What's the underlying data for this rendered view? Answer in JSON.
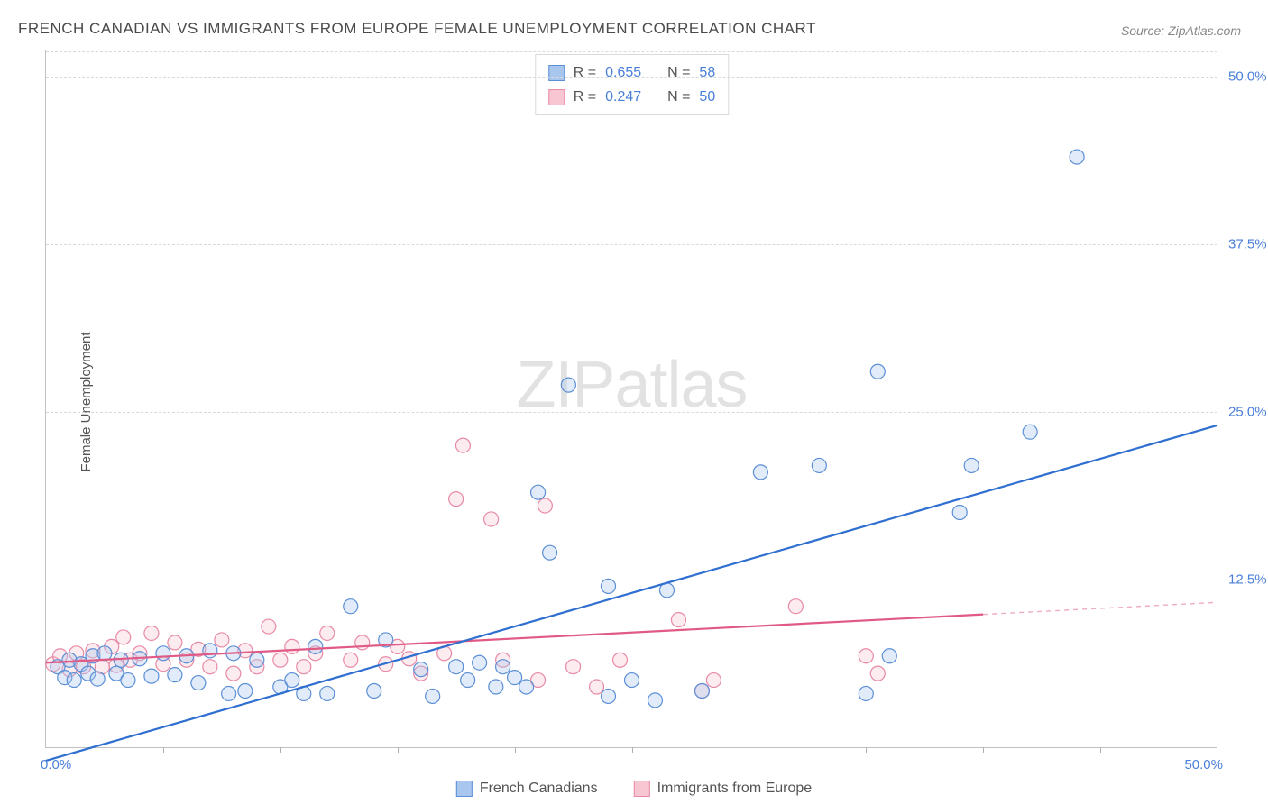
{
  "title": "FRENCH CANADIAN VS IMMIGRANTS FROM EUROPE FEMALE UNEMPLOYMENT CORRELATION CHART",
  "source": "Source: ZipAtlas.com",
  "ylabel": "Female Unemployment",
  "watermark_a": "ZIP",
  "watermark_b": "atlas",
  "chart": {
    "type": "scatter",
    "xlim": [
      0,
      50
    ],
    "ylim": [
      0,
      52
    ],
    "xlabel_min": "0.0%",
    "xlabel_max": "50.0%",
    "gridlines_y": [
      12.5,
      25.0,
      37.5,
      50.0
    ],
    "grid_dashed": true,
    "grid_color": "#d8d8d8",
    "ytick_labels": [
      "12.5%",
      "25.0%",
      "37.5%",
      "50.0%"
    ],
    "xtick_positions": [
      5,
      10,
      15,
      20,
      25,
      30,
      35,
      40,
      45
    ],
    "background_color": "#ffffff",
    "axis_color": "#c0c0c0",
    "label_color": "#4a7fd8",
    "text_color": "#555555",
    "title_fontsize": 17,
    "label_fontsize": 15,
    "marker_radius": 8,
    "marker_stroke_width": 1.2,
    "marker_fill_opacity": 0.35,
    "trend_line_width": 2.2
  },
  "series": {
    "blue": {
      "label": "French Canadians",
      "fill": "#a9c6ef",
      "stroke": "#5b8fd6",
      "trend_color": "#2f6fd0",
      "R": "0.655",
      "N": "58",
      "trend": {
        "x1": 0,
        "y1": -1.0,
        "x2": 50,
        "y2": 24.0,
        "solid_until_x": 50
      },
      "points": [
        [
          0.5,
          6.0
        ],
        [
          0.8,
          5.2
        ],
        [
          1.0,
          6.5
        ],
        [
          1.2,
          5.0
        ],
        [
          1.5,
          6.2
        ],
        [
          1.8,
          5.5
        ],
        [
          2.0,
          6.8
        ],
        [
          2.2,
          5.1
        ],
        [
          2.5,
          7.0
        ],
        [
          3.0,
          5.5
        ],
        [
          3.2,
          6.5
        ],
        [
          3.5,
          5.0
        ],
        [
          4.0,
          6.6
        ],
        [
          4.5,
          5.3
        ],
        [
          5.0,
          7.0
        ],
        [
          5.5,
          5.4
        ],
        [
          6.0,
          6.8
        ],
        [
          6.5,
          4.8
        ],
        [
          7.0,
          7.2
        ],
        [
          7.8,
          4.0
        ],
        [
          8.0,
          7.0
        ],
        [
          8.5,
          4.2
        ],
        [
          9.0,
          6.5
        ],
        [
          10.0,
          4.5
        ],
        [
          10.5,
          5.0
        ],
        [
          11.0,
          4.0
        ],
        [
          11.5,
          7.5
        ],
        [
          12.0,
          4.0
        ],
        [
          13.0,
          10.5
        ],
        [
          14.0,
          4.2
        ],
        [
          14.5,
          8.0
        ],
        [
          16.0,
          5.8
        ],
        [
          16.5,
          3.8
        ],
        [
          17.5,
          6.0
        ],
        [
          18.0,
          5.0
        ],
        [
          18.5,
          6.3
        ],
        [
          19.2,
          4.5
        ],
        [
          19.5,
          6.0
        ],
        [
          20.0,
          5.2
        ],
        [
          20.5,
          4.5
        ],
        [
          21.0,
          19.0
        ],
        [
          21.5,
          14.5
        ],
        [
          22.3,
          27.0
        ],
        [
          24.0,
          12.0
        ],
        [
          24.0,
          3.8
        ],
        [
          25.0,
          5.0
        ],
        [
          26.0,
          3.5
        ],
        [
          26.5,
          11.7
        ],
        [
          28.0,
          4.2
        ],
        [
          30.5,
          20.5
        ],
        [
          33.0,
          21.0
        ],
        [
          35.0,
          4.0
        ],
        [
          35.5,
          28.0
        ],
        [
          36.0,
          6.8
        ],
        [
          39.0,
          17.5
        ],
        [
          39.5,
          21.0
        ],
        [
          42.0,
          23.5
        ],
        [
          44.0,
          44.0
        ]
      ]
    },
    "pink": {
      "label": "Immigrants from Europe",
      "fill": "#f7c6d2",
      "stroke": "#e88aa5",
      "trend_color": "#e05a85",
      "R": "0.247",
      "N": "50",
      "trend": {
        "x1": 0,
        "y1": 6.3,
        "x2": 50,
        "y2": 10.8,
        "solid_until_x": 40
      },
      "points": [
        [
          0.3,
          6.2
        ],
        [
          0.6,
          6.8
        ],
        [
          1.0,
          5.8
        ],
        [
          1.3,
          7.0
        ],
        [
          1.6,
          6.0
        ],
        [
          2.0,
          7.2
        ],
        [
          2.4,
          6.0
        ],
        [
          2.8,
          7.5
        ],
        [
          3.0,
          6.1
        ],
        [
          3.3,
          8.2
        ],
        [
          3.6,
          6.5
        ],
        [
          4.0,
          7.0
        ],
        [
          4.5,
          8.5
        ],
        [
          5.0,
          6.2
        ],
        [
          5.5,
          7.8
        ],
        [
          6.0,
          6.5
        ],
        [
          6.5,
          7.3
        ],
        [
          7.0,
          6.0
        ],
        [
          7.5,
          8.0
        ],
        [
          8.0,
          5.5
        ],
        [
          8.5,
          7.2
        ],
        [
          9.0,
          6.0
        ],
        [
          9.5,
          9.0
        ],
        [
          10.0,
          6.5
        ],
        [
          10.5,
          7.5
        ],
        [
          11.0,
          6.0
        ],
        [
          11.5,
          7.0
        ],
        [
          12.0,
          8.5
        ],
        [
          13.0,
          6.5
        ],
        [
          13.5,
          7.8
        ],
        [
          14.5,
          6.2
        ],
        [
          15.0,
          7.5
        ],
        [
          15.5,
          6.6
        ],
        [
          16.0,
          5.5
        ],
        [
          17.0,
          7.0
        ],
        [
          17.5,
          18.5
        ],
        [
          17.8,
          22.5
        ],
        [
          19.0,
          17.0
        ],
        [
          19.5,
          6.5
        ],
        [
          21.0,
          5.0
        ],
        [
          21.3,
          18.0
        ],
        [
          22.5,
          6.0
        ],
        [
          23.5,
          4.5
        ],
        [
          24.5,
          6.5
        ],
        [
          27.0,
          9.5
        ],
        [
          28.0,
          4.2
        ],
        [
          28.5,
          5.0
        ],
        [
          32.0,
          10.5
        ],
        [
          35.0,
          6.8
        ],
        [
          35.5,
          5.5
        ]
      ]
    }
  },
  "stats_labels": {
    "R": "R =",
    "N": "N ="
  },
  "legend_swatch_size": 18
}
